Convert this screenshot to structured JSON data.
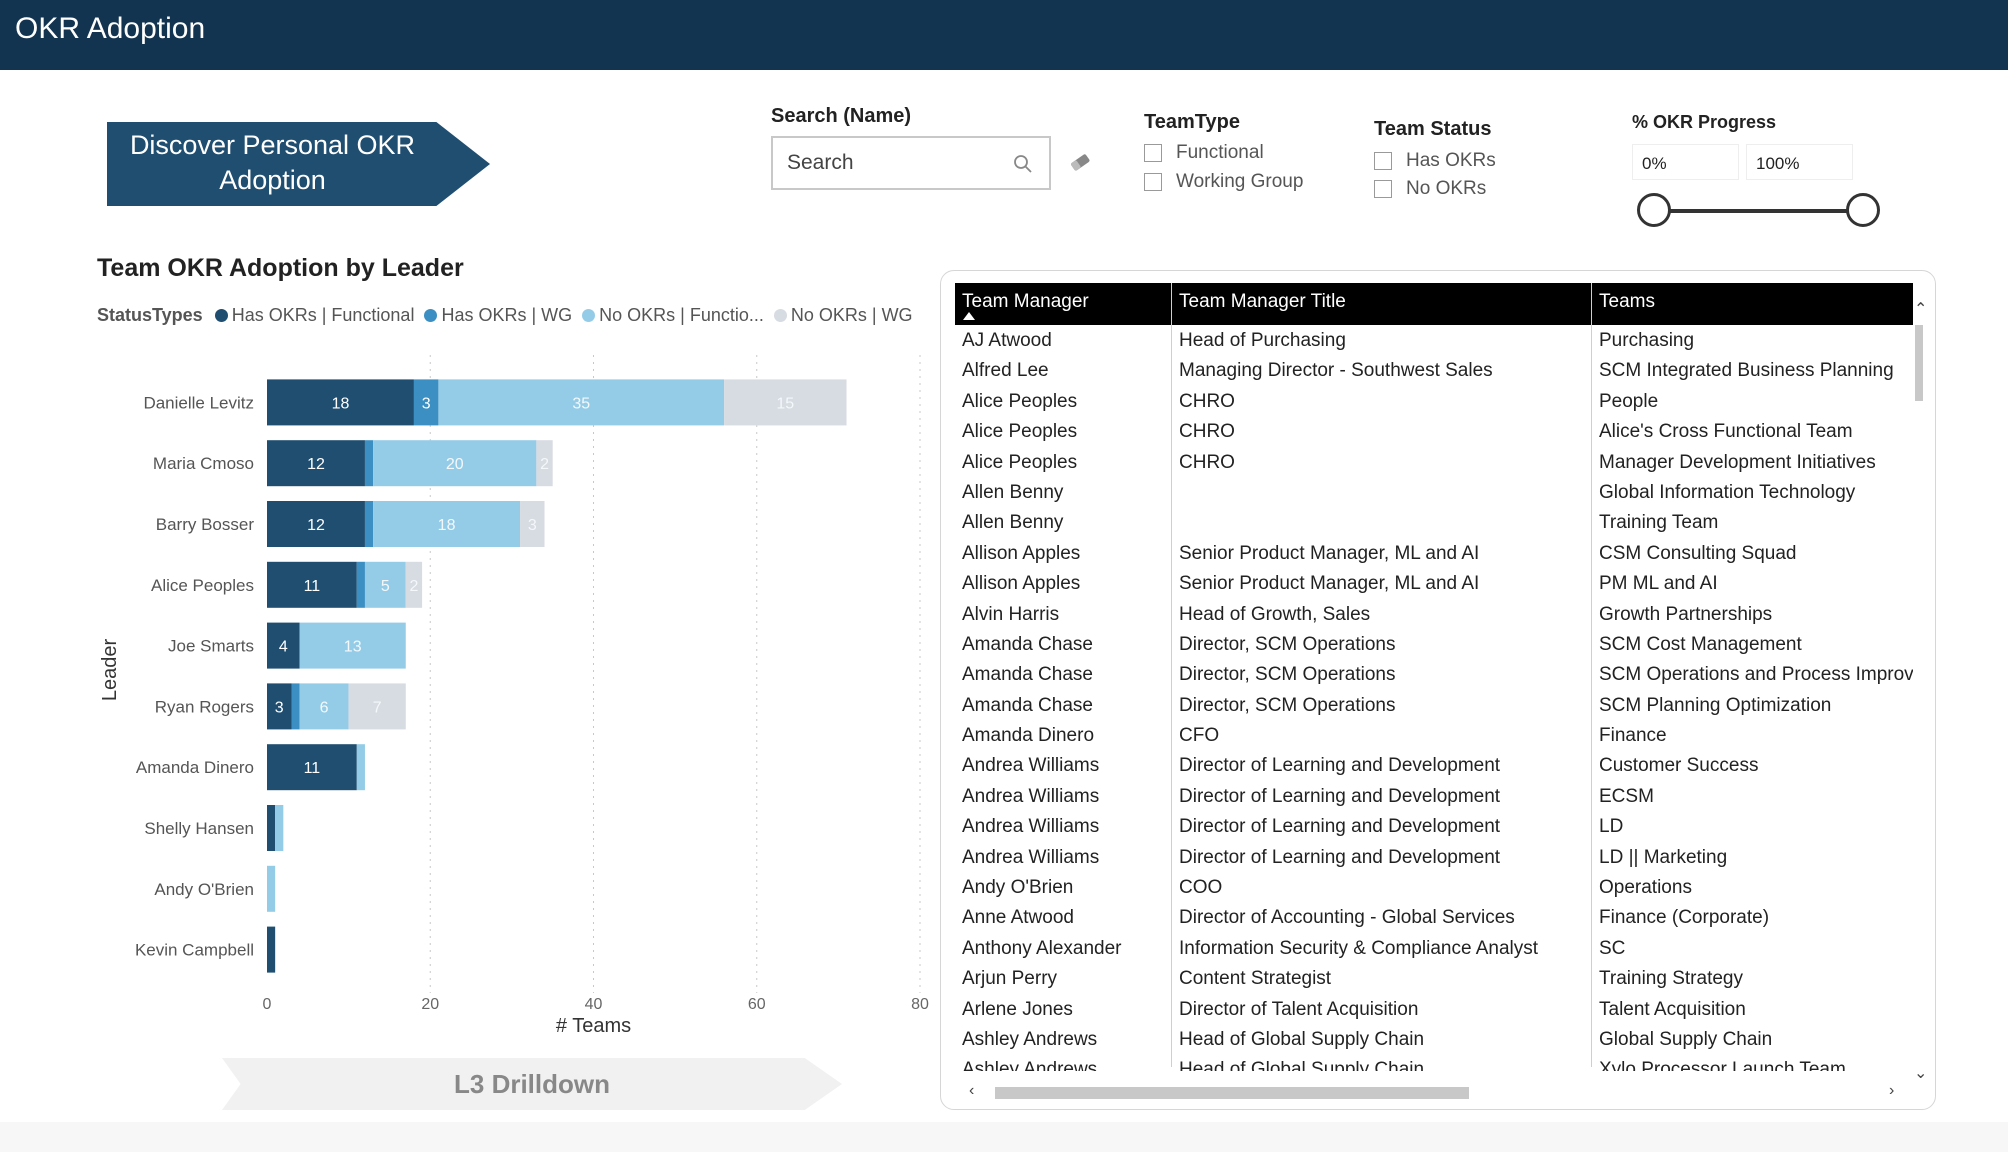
{
  "app": {
    "title": "OKR Adoption"
  },
  "nav": {
    "discover_label": "Discover Personal OKR Adoption",
    "drilldown_label": "L3 Drilldown"
  },
  "filters": {
    "search": {
      "label": "Search (Name)",
      "placeholder": "Search"
    },
    "team_type": {
      "label": "TeamType",
      "options": [
        "Functional",
        "Working Group"
      ]
    },
    "team_status": {
      "label": "Team Status",
      "options": [
        "Has OKRs",
        "No OKRs"
      ]
    },
    "okr_progress": {
      "label": "% OKR Progress",
      "min": "0%",
      "max": "100%",
      "range": [
        0,
        100
      ]
    }
  },
  "colors": {
    "has_functional": "#1f4e70",
    "has_wg": "#3c8fc2",
    "no_functional": "#94cce8",
    "no_wg": "#d7dbe2",
    "header_bg": "#133451"
  },
  "chart_data": {
    "type": "bar",
    "orientation": "horizontal",
    "stacked": true,
    "title": "Team OKR Adoption by Leader",
    "legend_title": "StatusTypes",
    "xlabel": "# Teams",
    "ylabel": "Leader",
    "xlim": [
      0,
      80
    ],
    "xticks": [
      0,
      20,
      40,
      60,
      80
    ],
    "categories": [
      "Danielle Levitz",
      "Maria Cmoso",
      "Barry Bosser",
      "Alice Peoples",
      "Joe Smarts",
      "Ryan Rogers",
      "Amanda Dinero",
      "Shelly Hansen",
      "Andy O'Brien",
      "Kevin Campbell"
    ],
    "series": [
      {
        "name": "Has OKRs | Functional",
        "legend_label": "Has OKRs | Functional",
        "color": "#1f4e70",
        "values": [
          18,
          12,
          12,
          11,
          4,
          3,
          11,
          1,
          0,
          1
        ]
      },
      {
        "name": "Has OKRs | WG",
        "legend_label": "Has OKRs | WG",
        "color": "#3c8fc2",
        "values": [
          3,
          1,
          1,
          1,
          0,
          1,
          0,
          0,
          0,
          0
        ]
      },
      {
        "name": "No OKRs | Functional",
        "legend_label": "No OKRs | Functio...",
        "color": "#94cce8",
        "values": [
          35,
          20,
          18,
          5,
          13,
          6,
          1,
          1,
          1,
          0
        ]
      },
      {
        "name": "No OKRs | WG",
        "legend_label": "No OKRs | WG",
        "color": "#d7dbe2",
        "values": [
          15,
          2,
          3,
          2,
          0,
          7,
          0,
          0,
          0,
          0
        ]
      }
    ],
    "data_labels": [
      [
        "18",
        "3",
        "35",
        "15"
      ],
      [
        "12",
        "",
        "20",
        "2"
      ],
      [
        "12",
        "",
        "18",
        "3"
      ],
      [
        "11",
        "",
        "5",
        "2"
      ],
      [
        "4",
        "",
        "13",
        ""
      ],
      [
        "3",
        "",
        "6",
        "7"
      ],
      [
        "11",
        "",
        "",
        ""
      ],
      [
        "",
        "",
        "",
        ""
      ],
      [
        "",
        "",
        "",
        ""
      ],
      [
        "",
        "",
        "",
        ""
      ]
    ]
  },
  "table": {
    "columns": [
      "Team Manager",
      "Team Manager Title",
      "Teams"
    ],
    "rows": [
      [
        "AJ Atwood",
        "Head of Purchasing",
        "Purchasing"
      ],
      [
        "Alfred Lee",
        "Managing Director - Southwest Sales",
        "SCM Integrated Business Planning"
      ],
      [
        "Alice Peoples",
        "CHRO",
        "People"
      ],
      [
        "Alice Peoples",
        "CHRO",
        "Alice's Cross Functional Team"
      ],
      [
        "Alice Peoples",
        "CHRO",
        "Manager Development Initiatives"
      ],
      [
        "Allen Benny",
        "",
        "Global Information Technology"
      ],
      [
        "Allen Benny",
        "",
        "Training Team"
      ],
      [
        "Allison Apples",
        "Senior Product Manager, ML and AI",
        "CSM Consulting Squad"
      ],
      [
        "Allison Apples",
        "Senior Product Manager, ML and AI",
        "PM ML and AI"
      ],
      [
        "Alvin Harris",
        "Head of Growth, Sales",
        "Growth Partnerships"
      ],
      [
        "Amanda Chase",
        "Director, SCM Operations",
        "SCM Cost Management"
      ],
      [
        "Amanda Chase",
        "Director, SCM Operations",
        "SCM Operations and Process Improve"
      ],
      [
        "Amanda Chase",
        "Director, SCM Operations",
        "SCM Planning Optimization"
      ],
      [
        "Amanda Dinero",
        "CFO",
        "Finance"
      ],
      [
        "Andrea Williams",
        "Director of Learning and Development",
        "Customer Success"
      ],
      [
        "Andrea Williams",
        "Director of Learning and Development",
        "ECSM"
      ],
      [
        "Andrea Williams",
        "Director of Learning and Development",
        "LD"
      ],
      [
        "Andrea Williams",
        "Director of Learning and Development",
        "LD || Marketing"
      ],
      [
        "Andy O'Brien",
        "COO",
        "Operations"
      ],
      [
        "Anne Atwood",
        "Director of Accounting - Global Services",
        "Finance (Corporate)"
      ],
      [
        "Anthony Alexander",
        "Information Security & Compliance Analyst",
        "SC"
      ],
      [
        "Arjun Perry",
        "Content Strategist",
        "Training Strategy"
      ],
      [
        "Arlene Jones",
        "Director of Talent Acquisition",
        "Talent Acquisition"
      ],
      [
        "Ashley Andrews",
        "Head of Global Supply Chain",
        "Global Supply Chain"
      ],
      [
        "Ashley Andrews",
        "Head of Global Supply Chain",
        "Xylo Processor Launch Team"
      ]
    ]
  }
}
